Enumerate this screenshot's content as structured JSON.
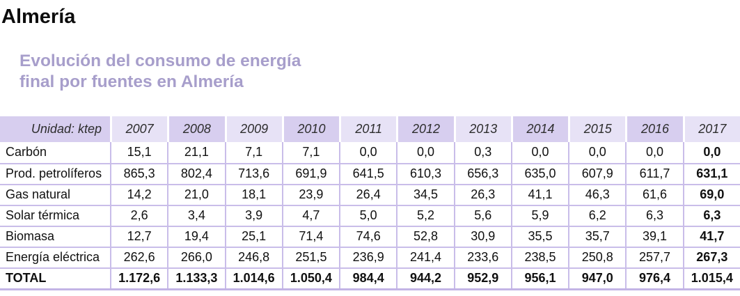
{
  "page": {
    "title": "Almería"
  },
  "subtitle": {
    "lines": [
      "Evolución del consumo de energía",
      "final por fuentes en Almería"
    ]
  },
  "table": {
    "unit_label": "Unidad: ktep",
    "years": [
      "2007",
      "2008",
      "2009",
      "2010",
      "2011",
      "2012",
      "2013",
      "2014",
      "2015",
      "2016",
      "2017"
    ],
    "rows": [
      {
        "label": "Carbón",
        "total": false,
        "values": [
          "15,1",
          "21,1",
          "7,1",
          "7,1",
          "0,0",
          "0,0",
          "0,3",
          "0,0",
          "0,0",
          "0,0",
          "0,0"
        ]
      },
      {
        "label": "Prod. petrolíferos",
        "total": false,
        "values": [
          "865,3",
          "802,4",
          "713,6",
          "691,9",
          "641,5",
          "610,3",
          "656,3",
          "635,0",
          "607,9",
          "611,7",
          "631,1"
        ]
      },
      {
        "label": "Gas natural",
        "total": false,
        "values": [
          "14,2",
          "21,0",
          "18,1",
          "23,9",
          "26,4",
          "34,5",
          "26,3",
          "41,1",
          "46,3",
          "61,6",
          "69,0"
        ]
      },
      {
        "label": "Solar térmica",
        "total": false,
        "values": [
          "2,6",
          "3,4",
          "3,9",
          "4,7",
          "5,0",
          "5,2",
          "5,6",
          "5,9",
          "6,2",
          "6,3",
          "6,3"
        ]
      },
      {
        "label": "Biomasa",
        "total": false,
        "values": [
          "12,7",
          "19,4",
          "25,1",
          "71,4",
          "74,6",
          "52,8",
          "30,9",
          "35,5",
          "35,7",
          "39,1",
          "41,7"
        ]
      },
      {
        "label": "Energía eléctrica",
        "total": false,
        "values": [
          "262,6",
          "266,0",
          "246,8",
          "251,5",
          "236,9",
          "241,4",
          "233,6",
          "238,5",
          "250,8",
          "257,7",
          "267,3"
        ]
      },
      {
        "label": "TOTAL",
        "total": true,
        "values": [
          "1.172,6",
          "1.133,3",
          "1.014,6",
          "1.050,4",
          "984,4",
          "944,2",
          "952,9",
          "956,1",
          "947,0",
          "976,4",
          "1.015,4"
        ]
      }
    ]
  },
  "colors": {
    "subtitle_text": "#a79ecb",
    "header_cell_dark": "#d7ceef",
    "header_cell_light": "#e7e2f6",
    "table_grid": "#c9bde9",
    "table_bottom_border": "#c3b4e5",
    "title_text": "#0d0d0d"
  },
  "chart_data": {
    "type": "table",
    "title": "Evolución del consumo de energía final por fuentes en Almería",
    "unit": "ktep",
    "categories": [
      2007,
      2008,
      2009,
      2010,
      2011,
      2012,
      2013,
      2014,
      2015,
      2016,
      2017
    ],
    "series": [
      {
        "name": "Carbón",
        "values": [
          15.1,
          21.1,
          7.1,
          7.1,
          0.0,
          0.0,
          0.3,
          0.0,
          0.0,
          0.0,
          0.0
        ]
      },
      {
        "name": "Prod. petrolíferos",
        "values": [
          865.3,
          802.4,
          713.6,
          691.9,
          641.5,
          610.3,
          656.3,
          635.0,
          607.9,
          611.7,
          631.1
        ]
      },
      {
        "name": "Gas natural",
        "values": [
          14.2,
          21.0,
          18.1,
          23.9,
          26.4,
          34.5,
          26.3,
          41.1,
          46.3,
          61.6,
          69.0
        ]
      },
      {
        "name": "Solar térmica",
        "values": [
          2.6,
          3.4,
          3.9,
          4.7,
          5.0,
          5.2,
          5.6,
          5.9,
          6.2,
          6.3,
          6.3
        ]
      },
      {
        "name": "Biomasa",
        "values": [
          12.7,
          19.4,
          25.1,
          71.4,
          74.6,
          52.8,
          30.9,
          35.5,
          35.7,
          39.1,
          41.7
        ]
      },
      {
        "name": "Energía eléctrica",
        "values": [
          262.6,
          266.0,
          246.8,
          251.5,
          236.9,
          241.4,
          233.6,
          238.5,
          250.8,
          257.7,
          267.3
        ]
      },
      {
        "name": "TOTAL",
        "values": [
          1172.6,
          1133.3,
          1014.6,
          1050.4,
          984.4,
          944.2,
          952.9,
          956.1,
          947.0,
          976.4,
          1015.4
        ]
      }
    ]
  }
}
